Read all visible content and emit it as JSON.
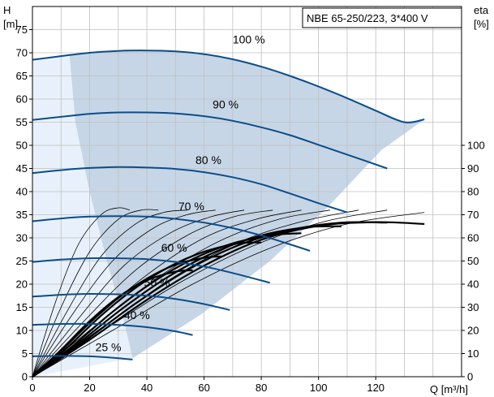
{
  "chart_data": {
    "type": "line",
    "title": "NBE 65-250/223, 3*400 V",
    "xlabel": "Q [m³/h]",
    "ylabel_left_top": "H",
    "ylabel_left_bottom": "[m]",
    "ylabel_right_top": "eta",
    "ylabel_right_bottom": "[%]",
    "xlim": [
      0,
      150
    ],
    "ylim_left": [
      0,
      80
    ],
    "ylim_right": [
      0,
      160
    ],
    "x_ticks": [
      "0",
      "20",
      "40",
      "60",
      "80",
      "100",
      "120"
    ],
    "x_tick_values": [
      0,
      20,
      40,
      60,
      80,
      100,
      120
    ],
    "y_ticks_left": [
      "0",
      "5",
      "10",
      "15",
      "20",
      "25",
      "30",
      "35",
      "40",
      "45",
      "50",
      "55",
      "60",
      "65",
      "70",
      "75"
    ],
    "y_tick_values_left": [
      0,
      5,
      10,
      15,
      20,
      25,
      30,
      35,
      40,
      45,
      50,
      55,
      60,
      65,
      70,
      75
    ],
    "y_ticks_right": [
      "0",
      "10",
      "20",
      "30",
      "40",
      "50",
      "60",
      "70",
      "80",
      "90",
      "100"
    ],
    "y_tick_values_right": [
      0,
      10,
      20,
      30,
      40,
      50,
      60,
      70,
      80,
      90,
      100
    ],
    "grid": true,
    "colors": {
      "grid": "#bfbfbf",
      "operating_region": "#c6d6e6",
      "low_flow_region": "#e8f1fb",
      "speed_curve": "#0b4d8a",
      "system_curve": "#000000"
    },
    "operating_region_boundary": [
      [
        13,
        69.4
      ],
      [
        15,
        55
      ],
      [
        20,
        40
      ],
      [
        26,
        25
      ],
      [
        32,
        12
      ],
      [
        35,
        4
      ],
      [
        59,
        13.5
      ],
      [
        83,
        25
      ],
      [
        103,
        36.5
      ],
      [
        122,
        49
      ],
      [
        137,
        55.6
      ]
    ],
    "speed_curves": [
      {
        "name": "100 %",
        "label_q": 70,
        "label_h": 72,
        "q": [
          0,
          13,
          20,
          30,
          40,
          50,
          60,
          70,
          80,
          90,
          100,
          110,
          120,
          130,
          137
        ],
        "h": [
          68.5,
          69.5,
          70.0,
          70.4,
          70.5,
          70.3,
          69.7,
          68.6,
          67.0,
          65.0,
          62.7,
          60.2,
          57.5,
          55.0,
          55.6
        ]
      },
      {
        "name": "90 %",
        "label_q": 63,
        "label_h": 58,
        "q": [
          0,
          12,
          20,
          30,
          40,
          50,
          60,
          70,
          80,
          90,
          100,
          110,
          124
        ],
        "h": [
          55.5,
          56.3,
          56.8,
          57.1,
          57.1,
          56.9,
          56.3,
          55.3,
          53.9,
          52.2,
          50.1,
          48.0,
          45.0
        ]
      },
      {
        "name": "80 %",
        "label_q": 57,
        "label_h": 46,
        "q": [
          0,
          11,
          20,
          30,
          40,
          50,
          60,
          70,
          80,
          90,
          100,
          110
        ],
        "h": [
          44.0,
          44.7,
          45.1,
          45.3,
          45.2,
          44.9,
          44.2,
          43.1,
          41.6,
          39.6,
          37.5,
          35.5
        ]
      },
      {
        "name": "70 %",
        "label_q": 51,
        "label_h": 36,
        "q": [
          0,
          10,
          20,
          30,
          40,
          50,
          60,
          70,
          80,
          90,
          97
        ],
        "h": [
          33.6,
          34.2,
          34.6,
          34.7,
          34.6,
          34.1,
          33.3,
          32.1,
          30.5,
          28.6,
          27.2
        ]
      },
      {
        "name": "60 %",
        "label_q": 45,
        "label_h": 27,
        "q": [
          0,
          10,
          20,
          30,
          40,
          50,
          60,
          70,
          83
        ],
        "h": [
          24.8,
          25.3,
          25.6,
          25.6,
          25.4,
          24.8,
          23.8,
          22.4,
          20.3
        ]
      },
      {
        "name": "50 %",
        "label_q": 39,
        "label_h": 19.5,
        "q": [
          0,
          10,
          20,
          30,
          40,
          50,
          60,
          69
        ],
        "h": [
          17.3,
          17.7,
          17.9,
          17.8,
          17.5,
          16.8,
          15.7,
          14.4
        ]
      },
      {
        "name": "40 %",
        "label_q": 32,
        "label_h": 12.5,
        "q": [
          0,
          10,
          20,
          30,
          40,
          50,
          56
        ],
        "h": [
          11.2,
          11.4,
          11.4,
          11.2,
          10.7,
          9.8,
          9.0
        ]
      },
      {
        "name": "25 %",
        "label_q": 22,
        "label_h": 5.5,
        "q": [
          0,
          10,
          20,
          28,
          35
        ],
        "h": [
          4.4,
          4.5,
          4.4,
          4.1,
          3.7
        ]
      }
    ],
    "efficiency_curves": [
      {
        "q": [
          0,
          8,
          16,
          24,
          30,
          34
        ],
        "eta": [
          0,
          32,
          57,
          70,
          73,
          72
        ]
      },
      {
        "q": [
          0,
          10,
          20,
          30,
          38,
          44
        ],
        "eta": [
          0,
          30,
          54,
          68,
          72,
          72
        ]
      },
      {
        "q": [
          0,
          12,
          24,
          36,
          46,
          54
        ],
        "eta": [
          0,
          28,
          52,
          66,
          71,
          72
        ]
      },
      {
        "q": [
          0,
          14,
          28,
          42,
          54,
          64
        ],
        "eta": [
          0,
          27,
          50,
          64,
          70,
          72
        ]
      },
      {
        "q": [
          0,
          16,
          32,
          48,
          62,
          74
        ],
        "eta": [
          0,
          25,
          48,
          62,
          69,
          72
        ]
      },
      {
        "q": [
          0,
          18,
          36,
          54,
          70,
          84
        ],
        "eta": [
          0,
          24,
          46,
          61,
          69,
          72
        ]
      },
      {
        "q": [
          0,
          20,
          40,
          60,
          78,
          94
        ],
        "eta": [
          0,
          23,
          44,
          60,
          68,
          72
        ]
      },
      {
        "q": [
          0,
          22,
          44,
          66,
          86,
          104
        ],
        "eta": [
          0,
          22,
          43,
          59,
          68,
          72
        ]
      },
      {
        "q": [
          0,
          24,
          48,
          72,
          94,
          114
        ],
        "eta": [
          0,
          21,
          42,
          58,
          67,
          72
        ]
      },
      {
        "q": [
          0,
          26,
          52,
          78,
          102,
          124
        ],
        "eta": [
          0,
          21,
          41,
          57,
          67,
          72
        ]
      },
      {
        "q": [
          0,
          28,
          56,
          84,
          110,
          137
        ],
        "eta": [
          0,
          20,
          40,
          56,
          66,
          71
        ]
      }
    ],
    "system_curves": [
      {
        "q": [
          0,
          10,
          20,
          30,
          40,
          50,
          56
        ],
        "h": [
          0,
          5.8,
          12.0,
          17.2,
          20.8,
          22.7,
          23.0
        ]
      },
      {
        "q": [
          0,
          10,
          20,
          30,
          40,
          50,
          60,
          66
        ],
        "h": [
          0,
          5.6,
          11.6,
          17.0,
          21.2,
          24.2,
          25.7,
          26.0
        ]
      },
      {
        "q": [
          0,
          12,
          24,
          36,
          48,
          60,
          72,
          80
        ],
        "h": [
          0,
          6.2,
          13.2,
          19.2,
          23.8,
          27.0,
          28.8,
          29.0
        ]
      },
      {
        "q": [
          0,
          14,
          28,
          42,
          56,
          70,
          84,
          94
        ],
        "h": [
          0,
          6.6,
          14.0,
          20.4,
          25.4,
          28.8,
          30.6,
          31.0
        ]
      },
      {
        "q": [
          0,
          16,
          32,
          48,
          64,
          80,
          96,
          108
        ],
        "h": [
          0,
          7.2,
          15.0,
          21.8,
          27.0,
          30.5,
          32.3,
          32.5
        ]
      },
      {
        "q": [
          0,
          18,
          36,
          54,
          72,
          90,
          108,
          124
        ],
        "h": [
          0,
          7.6,
          15.8,
          23.0,
          28.4,
          31.7,
          33.3,
          33.3
        ]
      },
      {
        "q": [
          0,
          20,
          40,
          60,
          80,
          100,
          120,
          137
        ],
        "h": [
          0,
          8.0,
          16.6,
          24.0,
          29.6,
          32.6,
          33.4,
          33.0
        ]
      }
    ]
  }
}
